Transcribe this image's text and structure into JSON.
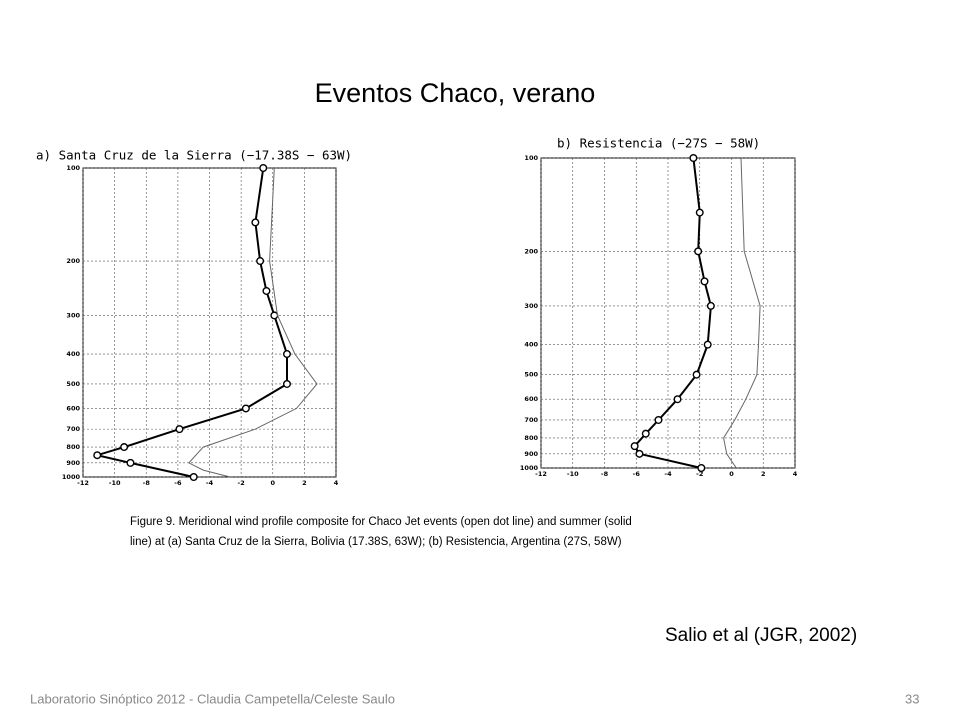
{
  "slide": {
    "title": "Eventos Chaco, verano",
    "caption": [
      "Figure 9. Meridional wind profile composite for Chaco Jet events (open dot line) and summer (solid",
      "line) at (a) Santa Cruz de la Sierra, Bolivia (17.38S, 63W); (b) Resistencia, Argentina (27S, 58W)"
    ],
    "citation": "Salio et al (JGR, 2002)",
    "footer": "Laboratorio Sinóptico 2012 - Claudia Campetella/Celeste Saulo",
    "page_number": "33"
  },
  "chart_data": [
    {
      "type": "line",
      "title": "a) Santa Cruz de la Sierra (−17.38S − 63W)",
      "xlim": [
        -12,
        4
      ],
      "xticks": [
        -12,
        -10,
        -8,
        -6,
        -4,
        -2,
        0,
        2,
        4
      ],
      "ylim": [
        100,
        1000
      ],
      "yticks": [
        100,
        200,
        300,
        400,
        500,
        600,
        700,
        800,
        900,
        1000
      ],
      "ylog": true,
      "yinverted": true,
      "grid": true,
      "series": [
        {
          "color": "#000000",
          "marker": "open-circle",
          "levels": [
            100,
            150,
            200,
            250,
            300,
            400,
            500,
            600,
            700,
            800,
            850,
            900,
            1000
          ],
          "values": [
            -0.6,
            -1.1,
            -0.8,
            -0.4,
            0.1,
            0.9,
            0.9,
            -1.7,
            -5.9,
            -9.4,
            -11.1,
            -9.0,
            -5.0
          ]
        },
        {
          "color": "#666666",
          "marker": "none",
          "levels": [
            100,
            200,
            300,
            400,
            500,
            600,
            700,
            800,
            900,
            950,
            1000
          ],
          "values": [
            0.1,
            -0.2,
            0.3,
            1.4,
            2.8,
            1.5,
            -1.1,
            -4.4,
            -5.3,
            -4.4,
            -2.7
          ]
        }
      ]
    },
    {
      "type": "line",
      "title": "b) Resistencia (−27S − 58W)",
      "xlim": [
        -12,
        4
      ],
      "xticks": [
        -12,
        -10,
        -8,
        -6,
        -4,
        -2,
        0,
        2,
        4
      ],
      "ylim": [
        100,
        1000
      ],
      "yticks": [
        100,
        200,
        300,
        400,
        500,
        600,
        700,
        800,
        900,
        1000
      ],
      "ylog": true,
      "yinverted": true,
      "grid": true,
      "series": [
        {
          "color": "#000000",
          "marker": "open-circle",
          "levels": [
            100,
            150,
            200,
            250,
            300,
            400,
            500,
            600,
            700,
            775,
            850,
            900,
            1000
          ],
          "values": [
            -2.4,
            -2.0,
            -2.1,
            -1.7,
            -1.3,
            -1.5,
            -2.2,
            -3.4,
            -4.6,
            -5.4,
            -6.1,
            -5.8,
            -1.9
          ]
        },
        {
          "color": "#666666",
          "marker": "none",
          "levels": [
            100,
            200,
            300,
            400,
            500,
            600,
            700,
            800,
            900,
            1000
          ],
          "values": [
            0.6,
            0.8,
            1.8,
            1.7,
            1.6,
            0.9,
            0.2,
            -0.5,
            -0.3,
            0.3
          ]
        }
      ]
    }
  ]
}
